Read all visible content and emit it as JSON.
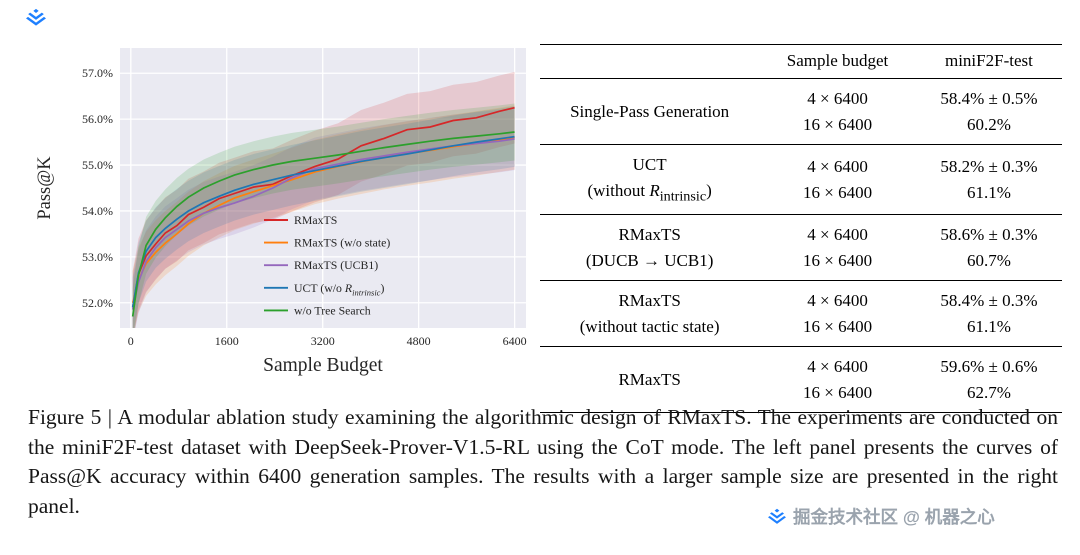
{
  "page": {
    "background": "#ffffff",
    "brand_color": "#1e80ff",
    "watermark_text": "掘金技术社区 @ 机器之心",
    "watermark_color": "#9aa3ad"
  },
  "figure": {
    "caption": "Figure 5 | A modular ablation study examining the algorithmic design of RMaxTS. The experiments are conducted on the miniF2F-test dataset with DeepSeek-Prover-V1.5-RL using the CoT mode. The left panel presents the curves of Pass@K accuracy within 6400 generation samples. The results with a larger sample size are presented in the right panel."
  },
  "chart_data": {
    "type": "line",
    "title": "",
    "xlabel": "Sample Budget",
    "ylabel": "Pass@K",
    "xlim": [
      0,
      6400
    ],
    "ylim": [
      51.45,
      57.55
    ],
    "x_ticks": [
      0,
      1600,
      3200,
      4800,
      6400
    ],
    "y_ticks": [
      "52.0%",
      "53.0%",
      "54.0%",
      "55.0%",
      "56.0%",
      "57.0%"
    ],
    "grid": true,
    "legend_position": "lower right",
    "plot_bg": "#eaeaf2",
    "tick_color": "#262626",
    "x": [
      32,
      128,
      256,
      416,
      576,
      768,
      960,
      1216,
      1472,
      1728,
      2048,
      2368,
      2688,
      3072,
      3456,
      3840,
      4224,
      4608,
      4992,
      5376,
      5760,
      6144,
      6400
    ],
    "series": [
      {
        "name": "RMaxTS",
        "color": "#d62728",
        "band": 0.78,
        "values": [
          51.9,
          52.62,
          53.02,
          53.28,
          53.52,
          53.68,
          53.92,
          54.08,
          54.27,
          54.38,
          54.52,
          54.58,
          54.77,
          54.97,
          55.13,
          55.42,
          55.58,
          55.77,
          55.83,
          55.97,
          56.03,
          56.17,
          56.25
        ]
      },
      {
        "name": "RMaxTS (w/o state)",
        "color": "#ff7f0e",
        "band": 0.7,
        "values": [
          52.0,
          52.5,
          52.85,
          53.1,
          53.3,
          53.5,
          53.72,
          53.95,
          54.12,
          54.28,
          54.42,
          54.55,
          54.68,
          54.85,
          54.97,
          55.07,
          55.17,
          55.25,
          55.32,
          55.4,
          55.47,
          55.55,
          55.6
        ]
      },
      {
        "name": "RMaxTS (UCB1)",
        "color": "#9467bd",
        "band": 0.68,
        "values": [
          51.85,
          52.45,
          52.9,
          53.2,
          53.42,
          53.6,
          53.78,
          53.95,
          54.07,
          54.17,
          54.32,
          54.5,
          54.72,
          54.92,
          55.02,
          55.12,
          55.2,
          55.28,
          55.35,
          55.42,
          55.47,
          55.52,
          55.57
        ]
      },
      {
        "name": "UCT (w/o $R$_{$intrinsic$})",
        "color": "#1f77b4",
        "band": 0.66,
        "values": [
          51.9,
          52.65,
          53.12,
          53.42,
          53.62,
          53.82,
          54.0,
          54.18,
          54.32,
          54.45,
          54.58,
          54.68,
          54.78,
          54.88,
          54.98,
          55.08,
          55.16,
          55.24,
          55.33,
          55.42,
          55.5,
          55.57,
          55.62
        ]
      },
      {
        "name": "w/o Tree Search",
        "color": "#2ca02c",
        "band": 0.62,
        "values": [
          51.7,
          52.6,
          53.25,
          53.6,
          53.85,
          54.1,
          54.3,
          54.5,
          54.65,
          54.78,
          54.9,
          55.0,
          55.08,
          55.15,
          55.22,
          55.3,
          55.38,
          55.45,
          55.52,
          55.58,
          55.63,
          55.68,
          55.72
        ]
      }
    ]
  },
  "table": {
    "headers": [
      "",
      "Sample budget",
      "miniF2F-test"
    ],
    "rows": [
      {
        "label": [
          "Single-Pass Generation"
        ],
        "budget": [
          "4 × 6400",
          "16 × 6400"
        ],
        "result": [
          "58.4% ± 0.5%",
          "60.2%"
        ]
      },
      {
        "label": [
          "UCT",
          "(without $R$_{intrinsic})"
        ],
        "budget": [
          "4 × 6400",
          "16 × 6400"
        ],
        "result": [
          "58.2% ± 0.3%",
          "61.1%"
        ]
      },
      {
        "label": [
          "RMaxTS",
          "(DUCB → UCB1)"
        ],
        "budget": [
          "4 × 6400",
          "16 × 6400"
        ],
        "result": [
          "58.6% ± 0.3%",
          "60.7%"
        ]
      },
      {
        "label": [
          "RMaxTS",
          "(without tactic state)"
        ],
        "budget": [
          "4 × 6400",
          "16 × 6400"
        ],
        "result": [
          "58.4% ± 0.3%",
          "61.1%"
        ]
      },
      {
        "label": [
          "RMaxTS"
        ],
        "budget": [
          "4 × 6400",
          "16 × 6400"
        ],
        "result": [
          "59.6% ± 0.6%",
          "62.7%"
        ]
      }
    ]
  }
}
